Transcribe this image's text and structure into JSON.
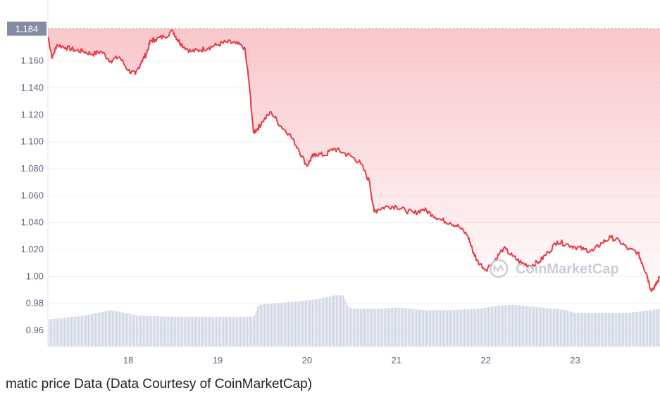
{
  "chart_data": {
    "type": "area",
    "xlabel": "",
    "ylabel": "",
    "x_ticks": [
      "18",
      "19",
      "20",
      "21",
      "22",
      "23"
    ],
    "y_ticks": [
      "0.96",
      "0.98",
      "1.00",
      "1.020",
      "1.040",
      "1.060",
      "1.080",
      "1.100",
      "1.120",
      "1.140",
      "1.160"
    ],
    "ylim": [
      0.948,
      1.1875
    ],
    "xlim": [
      17.1,
      23.95
    ],
    "current_price_label": "1.184",
    "reference_line": 1.184,
    "series": [
      {
        "x": [
          17.1,
          17.15,
          17.2,
          17.3,
          17.4,
          17.5,
          17.6,
          17.7,
          17.8,
          17.9,
          18.0,
          18.08,
          18.15,
          18.2,
          18.25,
          18.3,
          18.4,
          18.5,
          18.55,
          18.6,
          18.7,
          18.8,
          18.9,
          19.0,
          19.1,
          19.2,
          19.3,
          19.35,
          19.4,
          19.45,
          19.5,
          19.6,
          19.7,
          19.8,
          19.9,
          20.0,
          20.05,
          20.1,
          20.2,
          20.3,
          20.4,
          20.5,
          20.6,
          20.7,
          20.75,
          20.8,
          20.9,
          21.0,
          21.1,
          21.2,
          21.3,
          21.4,
          21.5,
          21.6,
          21.7,
          21.8,
          21.85,
          21.9,
          22.0,
          22.1,
          22.2,
          22.3,
          22.4,
          22.5,
          22.6,
          22.7,
          22.8,
          22.9,
          23.0,
          23.1,
          23.2,
          23.3,
          23.4,
          23.5,
          23.6,
          23.7,
          23.75,
          23.8,
          23.85,
          23.9,
          23.95
        ],
        "values": [
          1.178,
          1.162,
          1.172,
          1.17,
          1.168,
          1.167,
          1.165,
          1.167,
          1.16,
          1.163,
          1.153,
          1.15,
          1.16,
          1.165,
          1.175,
          1.176,
          1.178,
          1.182,
          1.176,
          1.172,
          1.167,
          1.168,
          1.17,
          1.172,
          1.174,
          1.173,
          1.17,
          1.145,
          1.107,
          1.11,
          1.115,
          1.122,
          1.112,
          1.106,
          1.095,
          1.082,
          1.088,
          1.091,
          1.09,
          1.095,
          1.092,
          1.089,
          1.084,
          1.07,
          1.048,
          1.05,
          1.052,
          1.052,
          1.049,
          1.047,
          1.05,
          1.046,
          1.042,
          1.04,
          1.037,
          1.03,
          1.02,
          1.012,
          1.005,
          1.012,
          1.021,
          1.015,
          1.01,
          1.008,
          1.011,
          1.018,
          1.026,
          1.024,
          1.022,
          1.02,
          1.019,
          1.025,
          1.029,
          1.026,
          1.02,
          1.018,
          1.01,
          1.002,
          0.99,
          0.993,
          1.0
        ],
        "color": "#ea3943"
      }
    ],
    "volume": {
      "x": [
        17.1,
        17.5,
        17.8,
        18.1,
        18.5,
        19.0,
        19.4,
        19.45,
        19.8,
        20.1,
        20.3,
        20.4,
        20.45,
        20.5,
        20.8,
        21.0,
        21.3,
        21.6,
        21.9,
        22.1,
        22.3,
        22.6,
        22.9,
        23.0,
        23.3,
        23.6,
        23.95
      ],
      "values": [
        0.968,
        0.971,
        0.975,
        0.971,
        0.97,
        0.97,
        0.97,
        0.979,
        0.981,
        0.983,
        0.986,
        0.986,
        0.978,
        0.976,
        0.976,
        0.977,
        0.975,
        0.975,
        0.976,
        0.978,
        0.979,
        0.977,
        0.975,
        0.973,
        0.973,
        0.973,
        0.976
      ],
      "color": "#cfd6e4"
    },
    "area_fill_color": "#ea3943",
    "grid": true
  },
  "watermark": "CoinMarketCap",
  "caption": "matic price Data (Data Courtesy of CoinMarketCap)"
}
